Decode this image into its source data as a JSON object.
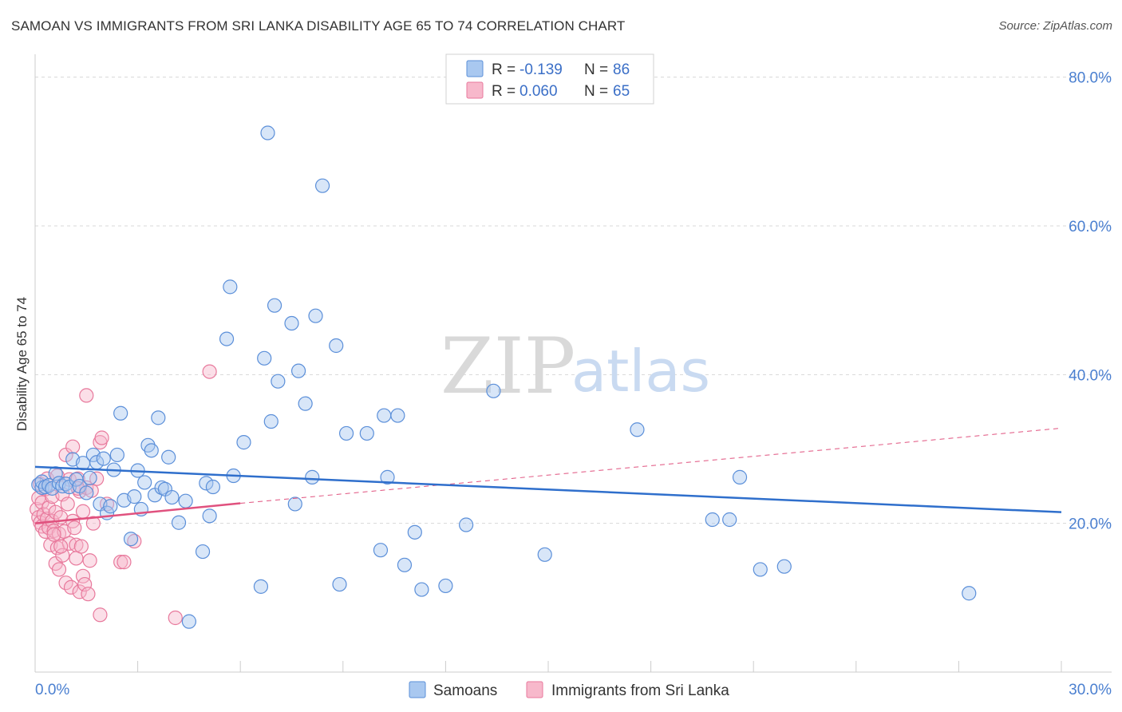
{
  "title": "SAMOAN VS IMMIGRANTS FROM SRI LANKA DISABILITY AGE 65 TO 74 CORRELATION CHART",
  "source": "Source: ZipAtlas.com",
  "watermark": {
    "zip": "ZIP",
    "atlas": "atlas"
  },
  "colors": {
    "samoans_fill": "#a9c8f0",
    "samoans_stroke": "#5b8fd9",
    "samoans_line": "#2f6fcc",
    "srilanka_fill": "#f7b8cb",
    "srilanka_stroke": "#e8799c",
    "srilanka_line": "#e0517e",
    "grid": "#d8d8d8",
    "tick_label": "#4a7fd0"
  },
  "legend": {
    "r_label": "R =",
    "n_label": "N =",
    "entries": [
      {
        "r": "-0.139",
        "n": "86"
      },
      {
        "r": "0.060",
        "n": "65"
      }
    ]
  },
  "chart_data": {
    "type": "scatter",
    "title": "SAMOAN VS IMMIGRANTS FROM SRI LANKA DISABILITY AGE 65 TO 74 CORRELATION CHART",
    "xlabel": "",
    "ylabel": "Disability Age 65 to 74",
    "xlim": [
      0,
      30
    ],
    "ylim": [
      0,
      82
    ],
    "x_tick_labels": [
      "0.0%",
      "30.0%"
    ],
    "y_ticks": [
      20,
      40,
      60,
      80
    ],
    "y_tick_labels": [
      "20.0%",
      "40.0%",
      "60.0%",
      "80.0%"
    ],
    "grid": "horizontal dashed",
    "legend_position": "top-center",
    "series": [
      {
        "name": "Samoans",
        "r": -0.139,
        "n": 86,
        "trend": {
          "x": [
            0,
            30
          ],
          "y": [
            27.6,
            21.5
          ],
          "style": "solid"
        },
        "points": [
          [
            0.1,
            25.2
          ],
          [
            0.2,
            24.8
          ],
          [
            0.2,
            25.6
          ],
          [
            0.3,
            24.9
          ],
          [
            0.4,
            25.1
          ],
          [
            0.5,
            24.7
          ],
          [
            0.6,
            26.7
          ],
          [
            0.7,
            25.4
          ],
          [
            0.8,
            25.0
          ],
          [
            0.9,
            25.3
          ],
          [
            1.0,
            24.9
          ],
          [
            1.1,
            28.6
          ],
          [
            1.2,
            25.9
          ],
          [
            1.3,
            25.0
          ],
          [
            1.4,
            28.1
          ],
          [
            1.5,
            24.1
          ],
          [
            1.6,
            26.1
          ],
          [
            1.7,
            29.2
          ],
          [
            1.8,
            28.2
          ],
          [
            1.9,
            22.6
          ],
          [
            2.0,
            28.7
          ],
          [
            2.1,
            21.4
          ],
          [
            2.2,
            22.3
          ],
          [
            2.3,
            27.2
          ],
          [
            2.4,
            29.2
          ],
          [
            2.5,
            34.8
          ],
          [
            2.6,
            23.1
          ],
          [
            2.8,
            17.9
          ],
          [
            2.9,
            23.6
          ],
          [
            3.0,
            27.1
          ],
          [
            3.1,
            21.9
          ],
          [
            3.2,
            25.5
          ],
          [
            3.3,
            30.5
          ],
          [
            3.4,
            29.8
          ],
          [
            3.5,
            23.8
          ],
          [
            3.6,
            34.2
          ],
          [
            3.7,
            24.8
          ],
          [
            3.8,
            24.6
          ],
          [
            3.9,
            28.9
          ],
          [
            4.0,
            23.5
          ],
          [
            4.2,
            20.1
          ],
          [
            4.4,
            23.0
          ],
          [
            4.5,
            6.8
          ],
          [
            4.9,
            16.2
          ],
          [
            5.0,
            25.4
          ],
          [
            5.1,
            21.0
          ],
          [
            5.2,
            24.9
          ],
          [
            5.6,
            44.8
          ],
          [
            5.7,
            51.8
          ],
          [
            5.8,
            26.4
          ],
          [
            6.1,
            30.9
          ],
          [
            6.6,
            11.5
          ],
          [
            6.7,
            42.2
          ],
          [
            6.8,
            72.5
          ],
          [
            6.9,
            33.7
          ],
          [
            7.0,
            49.3
          ],
          [
            7.1,
            39.1
          ],
          [
            7.5,
            46.9
          ],
          [
            7.6,
            22.6
          ],
          [
            7.7,
            40.5
          ],
          [
            7.9,
            36.1
          ],
          [
            8.1,
            26.2
          ],
          [
            8.2,
            47.9
          ],
          [
            8.4,
            65.4
          ],
          [
            8.8,
            43.9
          ],
          [
            8.9,
            11.8
          ],
          [
            9.1,
            32.1
          ],
          [
            9.7,
            32.1
          ],
          [
            10.1,
            16.4
          ],
          [
            10.2,
            34.5
          ],
          [
            10.3,
            26.2
          ],
          [
            10.6,
            34.5
          ],
          [
            10.8,
            14.4
          ],
          [
            11.1,
            18.8
          ],
          [
            11.3,
            11.1
          ],
          [
            12.0,
            11.6
          ],
          [
            12.6,
            19.8
          ],
          [
            13.4,
            37.8
          ],
          [
            14.9,
            15.8
          ],
          [
            17.6,
            32.6
          ],
          [
            19.8,
            20.5
          ],
          [
            20.3,
            20.5
          ],
          [
            20.6,
            26.2
          ],
          [
            21.2,
            13.8
          ],
          [
            21.9,
            14.2
          ],
          [
            27.3,
            10.6
          ]
        ]
      },
      {
        "name": "Immigrants from Sri Lanka",
        "r": 0.06,
        "n": 65,
        "trend": {
          "x": [
            0,
            6.0
          ],
          "y": [
            20.0,
            22.7
          ],
          "style": "solid"
        },
        "trend_extension": {
          "x": [
            6.0,
            30
          ],
          "y": [
            22.7,
            32.8
          ],
          "style": "dashed"
        },
        "points": [
          [
            0.05,
            21.9
          ],
          [
            0.1,
            23.4
          ],
          [
            0.1,
            20.8
          ],
          [
            0.15,
            20.1
          ],
          [
            0.2,
            19.6
          ],
          [
            0.2,
            22.8
          ],
          [
            0.25,
            21.2
          ],
          [
            0.3,
            24.6
          ],
          [
            0.3,
            18.9
          ],
          [
            0.35,
            20.6
          ],
          [
            0.4,
            22.1
          ],
          [
            0.4,
            19.4
          ],
          [
            0.45,
            17.1
          ],
          [
            0.5,
            20.3
          ],
          [
            0.5,
            23.6
          ],
          [
            0.55,
            19.0
          ],
          [
            0.6,
            21.5
          ],
          [
            0.6,
            14.6
          ],
          [
            0.65,
            16.7
          ],
          [
            0.7,
            18.6
          ],
          [
            0.7,
            13.8
          ],
          [
            0.75,
            20.8
          ],
          [
            0.8,
            23.9
          ],
          [
            0.8,
            15.7
          ],
          [
            0.85,
            18.9
          ],
          [
            0.9,
            12.0
          ],
          [
            0.9,
            29.2
          ],
          [
            0.95,
            22.6
          ],
          [
            1.0,
            17.3
          ],
          [
            1.0,
            25.9
          ],
          [
            1.05,
            11.4
          ],
          [
            1.1,
            30.3
          ],
          [
            1.1,
            20.3
          ],
          [
            1.15,
            19.4
          ],
          [
            1.2,
            17.1
          ],
          [
            1.2,
            15.3
          ],
          [
            1.25,
            26.0
          ],
          [
            1.3,
            24.3
          ],
          [
            1.3,
            10.8
          ],
          [
            1.35,
            16.9
          ],
          [
            1.4,
            21.6
          ],
          [
            1.4,
            12.9
          ],
          [
            1.45,
            11.8
          ],
          [
            1.5,
            24.8
          ],
          [
            1.5,
            37.2
          ],
          [
            1.55,
            10.5
          ],
          [
            1.6,
            15.0
          ],
          [
            1.65,
            24.4
          ],
          [
            1.7,
            20.0
          ],
          [
            1.8,
            26.0
          ],
          [
            1.9,
            7.7
          ],
          [
            1.9,
            30.9
          ],
          [
            1.95,
            31.5
          ],
          [
            2.1,
            22.6
          ],
          [
            2.5,
            14.8
          ],
          [
            2.6,
            14.8
          ],
          [
            2.9,
            17.6
          ],
          [
            4.1,
            7.3
          ],
          [
            5.1,
            40.4
          ],
          [
            0.15,
            25.3
          ],
          [
            0.35,
            26.0
          ],
          [
            0.55,
            18.5
          ],
          [
            0.75,
            16.9
          ],
          [
            1.25,
            24.7
          ],
          [
            0.65,
            26.4
          ]
        ]
      }
    ]
  },
  "bottom_legend": {
    "samoans": "Samoans",
    "srilanka": "Immigrants from Sri Lanka"
  }
}
